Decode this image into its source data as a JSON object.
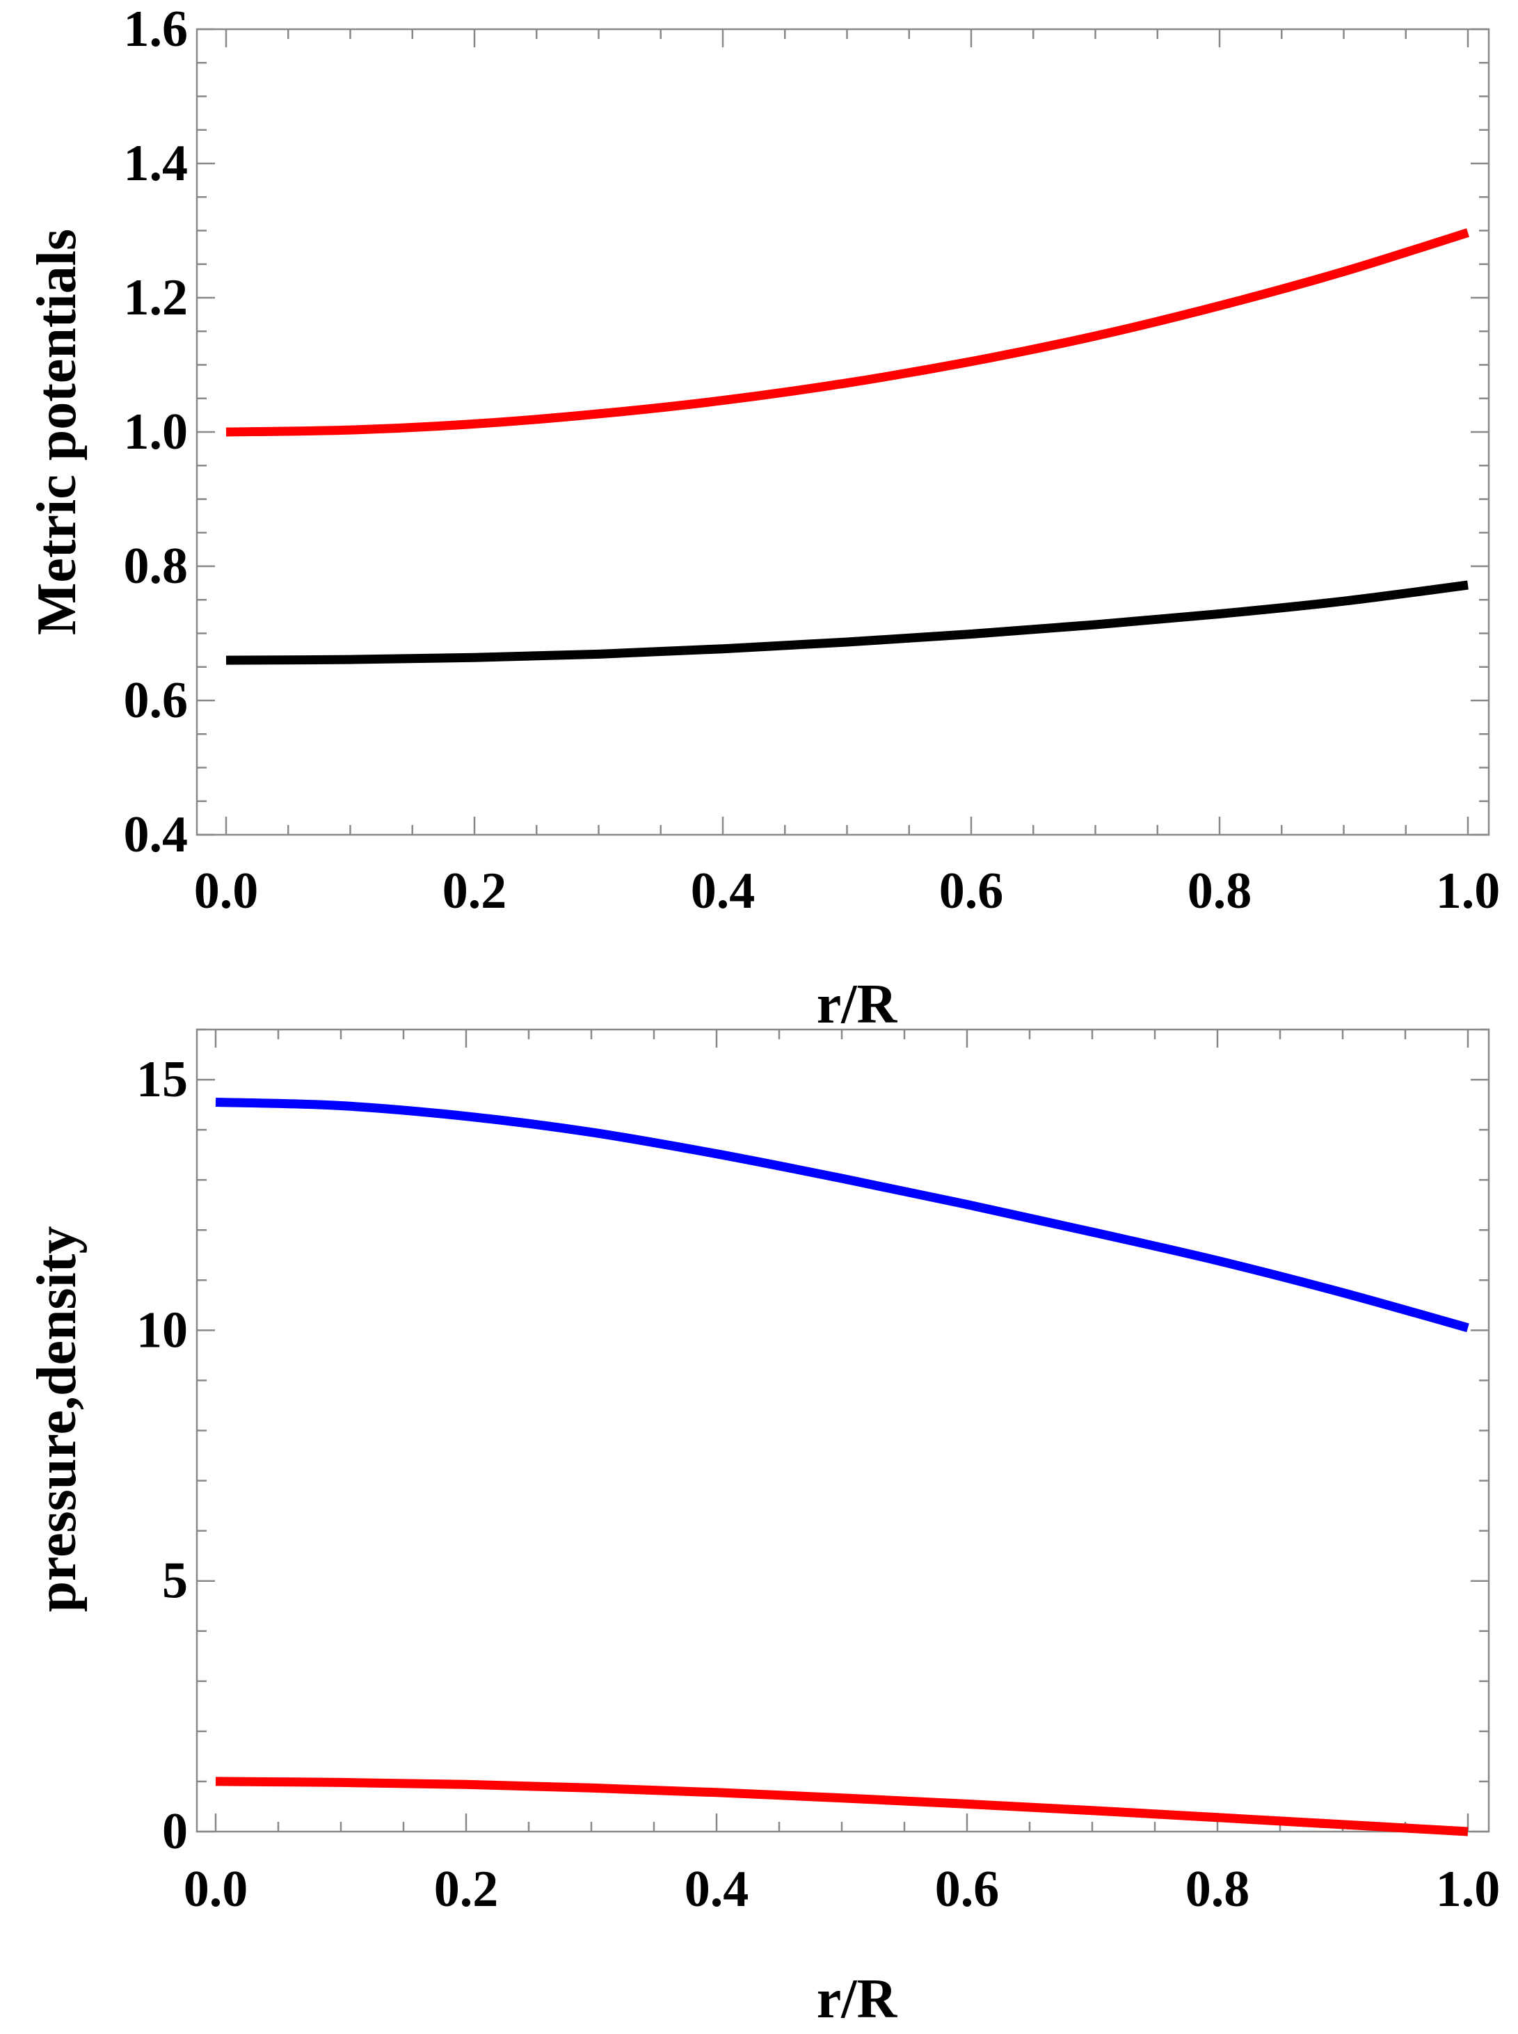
{
  "chart_data": [
    {
      "type": "line",
      "title": "",
      "xlabel": "r/R",
      "ylabel": "Metric potentials",
      "xlim": [
        0.0,
        1.0
      ],
      "ylim": [
        0.4,
        1.6
      ],
      "x_ticks": [
        0.0,
        0.2,
        0.4,
        0.6,
        0.8,
        1.0
      ],
      "x_tick_labels": [
        "0.0",
        "0.2",
        "0.4",
        "0.6",
        "0.8",
        "1.0"
      ],
      "y_ticks": [
        0.4,
        0.6,
        0.8,
        1.0,
        1.2,
        1.4,
        1.6
      ],
      "y_tick_labels": [
        "0.4",
        "0.6",
        "0.8",
        "1.0",
        "1.2",
        "1.4",
        "1.6"
      ],
      "x_minor_step": 0.05,
      "y_minor_step": 0.05,
      "grid": false,
      "legend": "none",
      "x": [
        0.0,
        0.1,
        0.2,
        0.3,
        0.4,
        0.5,
        0.6,
        0.7,
        0.8,
        0.9,
        1.0
      ],
      "series": [
        {
          "name": "red curve",
          "color": "#ff0000",
          "values": [
            1.0,
            1.003,
            1.012,
            1.027,
            1.047,
            1.073,
            1.105,
            1.143,
            1.188,
            1.239,
            1.297
          ]
        },
        {
          "name": "black curve",
          "color": "#000000",
          "values": [
            0.66,
            0.661,
            0.664,
            0.669,
            0.677,
            0.687,
            0.699,
            0.713,
            0.729,
            0.748,
            0.772
          ]
        }
      ]
    },
    {
      "type": "line",
      "title": "",
      "xlabel": "r/R",
      "ylabel": "pressure,density",
      "xlim": [
        0.0,
        1.0
      ],
      "ylim": [
        0,
        16
      ],
      "x_ticks": [
        0.0,
        0.2,
        0.4,
        0.6,
        0.8,
        1.0
      ],
      "x_tick_labels": [
        "0.0",
        "0.2",
        "0.4",
        "0.6",
        "0.8",
        "1.0"
      ],
      "y_ticks": [
        0,
        5,
        10,
        15
      ],
      "y_tick_labels": [
        "0",
        "5",
        "10",
        "15"
      ],
      "x_minor_step": 0.05,
      "y_minor_step": 1,
      "grid": false,
      "legend": "none",
      "x": [
        0.0,
        0.1,
        0.2,
        0.3,
        0.4,
        0.5,
        0.6,
        0.7,
        0.8,
        0.9,
        1.0
      ],
      "series": [
        {
          "name": "blue curve",
          "color": "#0000ff",
          "values": [
            14.55,
            14.48,
            14.27,
            13.95,
            13.52,
            13.03,
            12.51,
            11.96,
            11.39,
            10.75,
            10.05
          ]
        },
        {
          "name": "red curve",
          "color": "#ff0000",
          "values": [
            1.0,
            0.98,
            0.94,
            0.87,
            0.78,
            0.67,
            0.55,
            0.42,
            0.28,
            0.14,
            0.0
          ]
        }
      ]
    }
  ]
}
